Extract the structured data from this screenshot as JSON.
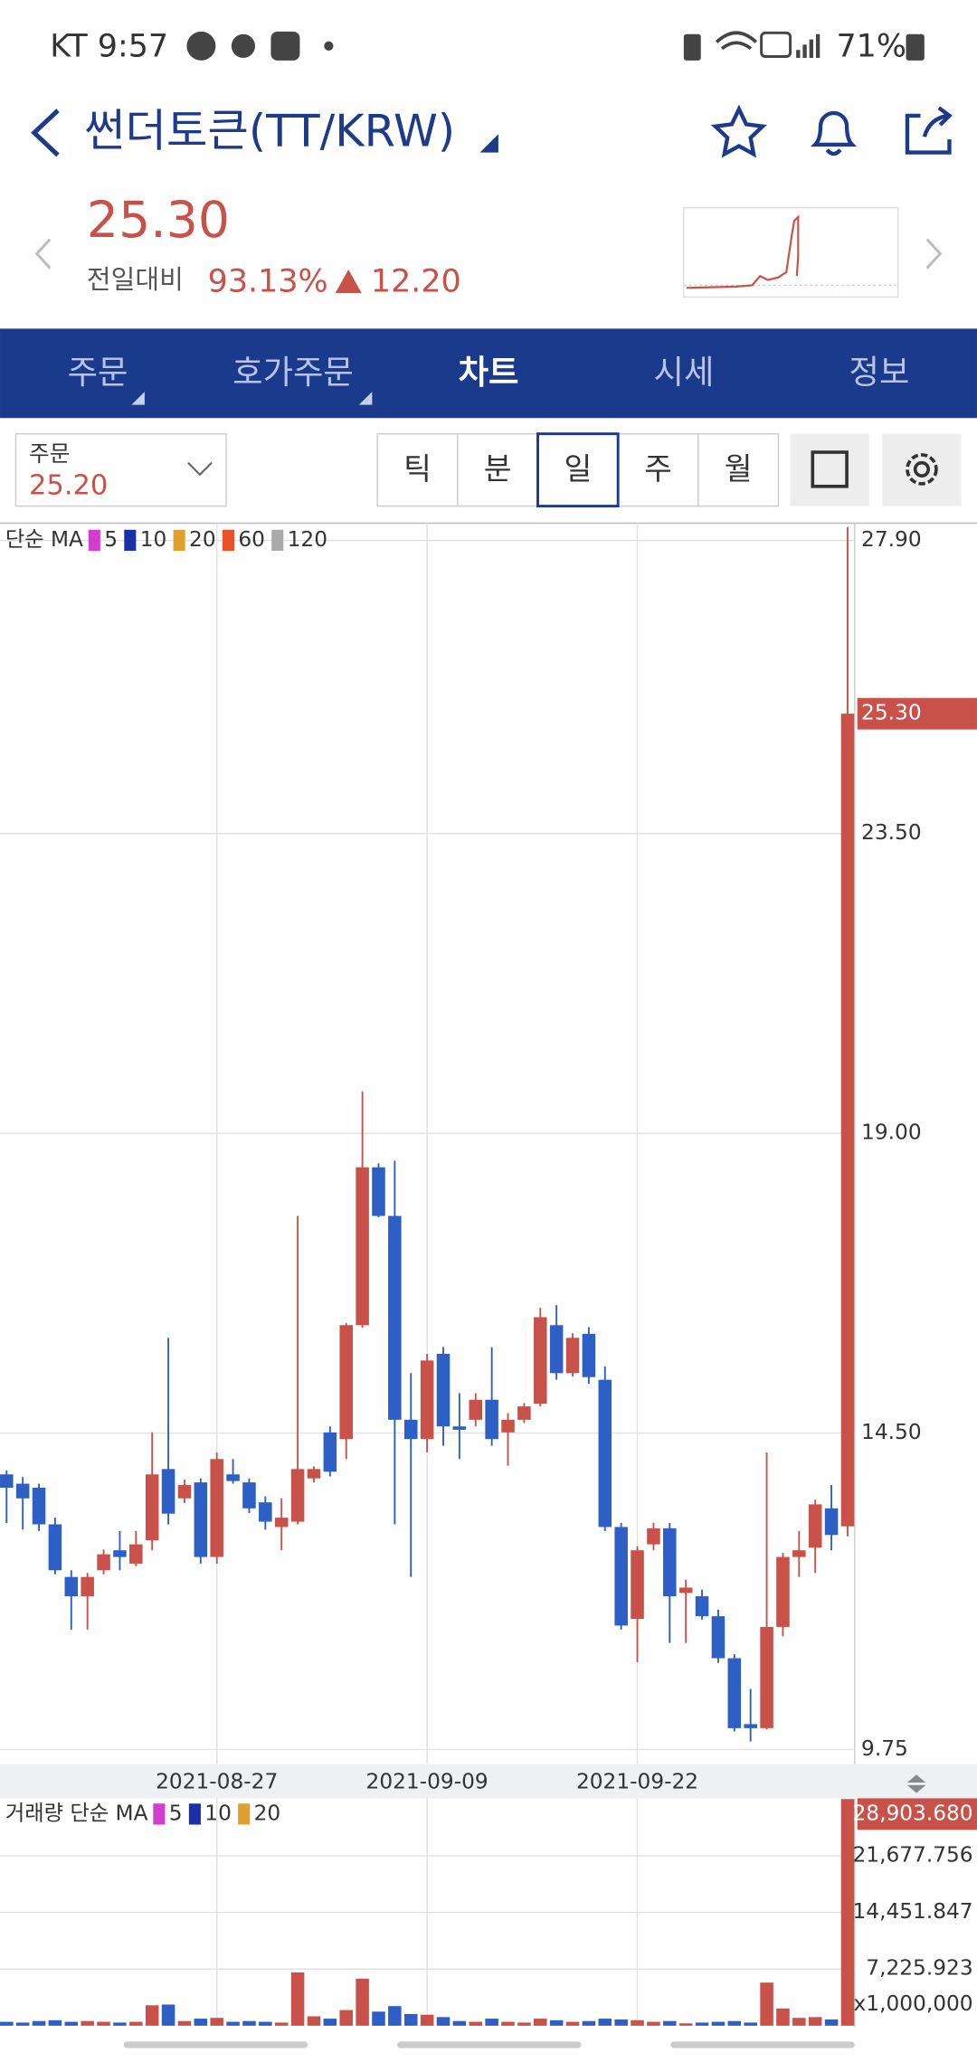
{
  "status_bar": {
    "carrier_time": "KT 9:57",
    "battery": "71%"
  },
  "header": {
    "title": "썬더토큰(TT/KRW)"
  },
  "price": {
    "current": "25.30",
    "change_label": "전일대비",
    "change_percent": "93.13%",
    "change": "12.20"
  },
  "tabs": [
    "주문",
    "호가주문",
    "차트",
    "시세",
    "정보"
  ],
  "active_tab": 2,
  "order": {
    "label": "주문",
    "price": "25.20"
  },
  "periods": [
    "틱",
    "분",
    "일",
    "주",
    "월"
  ],
  "active_period": 2,
  "chart_data": [
    {
      "type": "candlestick",
      "legend": {
        "title": "단순 MA",
        "items": [
          {
            "name": "5",
            "color": "#d23ccf"
          },
          {
            "name": "10",
            "color": "#1a2fa8"
          },
          {
            "name": "20",
            "color": "#e0a030"
          },
          {
            "name": "60",
            "color": "#e8532a"
          },
          {
            "name": "120",
            "color": "#aaaaaa"
          }
        ]
      },
      "categories": [
        null,
        null,
        null,
        null,
        null,
        null,
        null,
        null,
        null,
        null,
        null,
        null,
        null,
        "2021-08-27",
        null,
        null,
        null,
        null,
        null,
        null,
        null,
        null,
        null,
        null,
        null,
        null,
        "2021-09-09",
        null,
        null,
        null,
        null,
        null,
        null,
        null,
        null,
        null,
        null,
        null,
        null,
        "2021-09-22",
        null,
        null,
        null,
        null,
        null,
        null,
        null,
        null,
        null,
        null,
        null,
        null,
        null
      ],
      "open": [
        13.88,
        13.74,
        13.68,
        13.13,
        12.34,
        12.05,
        12.44,
        12.74,
        12.54,
        12.89,
        13.96,
        13.52,
        13.76,
        12.64,
        13.88,
        13.76,
        13.46,
        13.09,
        13.17,
        13.82,
        14.51,
        14.41,
        16.12,
        18.49,
        17.76,
        14.7,
        14.41,
        15.69,
        14.6,
        14.7,
        15.0,
        14.51,
        14.7,
        14.94,
        16.12,
        15.4,
        15.99,
        15.3,
        13.09,
        11.71,
        12.83,
        13.07,
        12.1,
        12.05,
        11.75,
        11.12,
        10.13,
        10.07,
        11.59,
        12.64,
        12.78,
        13.37,
        13.1
      ],
      "high": [
        13.94,
        13.84,
        13.74,
        13.23,
        12.44,
        12.4,
        12.75,
        13.03,
        13.03,
        14.51,
        15.93,
        13.8,
        13.82,
        14.21,
        14.11,
        13.82,
        13.55,
        13.52,
        17.76,
        14.0,
        14.6,
        16.15,
        19.63,
        18.55,
        18.59,
        15.4,
        15.69,
        15.79,
        15.1,
        15.1,
        15.79,
        14.8,
        14.95,
        16.38,
        16.42,
        16.0,
        16.09,
        15.5,
        13.15,
        12.8,
        13.15,
        13.15,
        12.3,
        12.15,
        11.85,
        11.18,
        10.66,
        14.21,
        12.7,
        13.03,
        13.5,
        13.72,
        28.1
      ],
      "low": [
        13.15,
        13.05,
        13.03,
        12.38,
        11.55,
        11.55,
        12.38,
        12.44,
        12.5,
        12.74,
        13.13,
        13.45,
        12.54,
        12.54,
        13.74,
        13.3,
        13.05,
        12.74,
        13.13,
        13.76,
        13.85,
        14.11,
        16.08,
        17.74,
        13.13,
        12.34,
        14.21,
        14.31,
        14.11,
        14.6,
        14.31,
        14.01,
        14.65,
        14.9,
        15.3,
        15.35,
        15.24,
        13.03,
        11.55,
        11.06,
        12.74,
        11.35,
        11.35,
        11.7,
        11.05,
        10.02,
        9.87,
        10.05,
        11.45,
        12.34,
        12.4,
        12.74,
        12.95
      ],
      "close": [
        13.68,
        13.52,
        13.13,
        12.44,
        12.05,
        12.34,
        12.68,
        12.64,
        12.83,
        13.88,
        13.29,
        13.72,
        12.64,
        14.11,
        13.78,
        13.37,
        13.17,
        13.23,
        13.96,
        13.96,
        13.92,
        16.12,
        18.49,
        17.76,
        14.7,
        14.41,
        15.59,
        14.6,
        14.55,
        15.0,
        14.41,
        14.7,
        14.9,
        16.24,
        15.4,
        15.93,
        15.34,
        13.09,
        11.61,
        12.74,
        13.07,
        12.05,
        12.18,
        11.75,
        11.12,
        10.07,
        10.07,
        11.59,
        12.64,
        12.74,
        13.43,
        12.97,
        25.3
      ],
      "up_color": "#c8524a",
      "down_color": "#2e5fc4",
      "current_label": "25.30",
      "ylim": [
        9.53,
        28.16
      ],
      "yticks": [
        9.75,
        {
          "value": 14.5,
          "label": "14.50"
        },
        {
          "value": 19,
          "label": "19.00"
        },
        {
          "value": 23.5,
          "label": "23.50"
        },
        {
          "value": 27.9,
          "label": "27.90"
        }
      ],
      "grid": true
    },
    {
      "type": "bar",
      "legend": {
        "title": "거래량 단순 MA",
        "items": [
          {
            "name": "5",
            "color": "#d23ccf"
          },
          {
            "name": "10",
            "color": "#1a2fa8"
          },
          {
            "name": "20",
            "color": "#e0a030"
          }
        ]
      },
      "values": [
        500,
        400,
        600,
        700,
        500,
        600,
        500,
        400,
        500,
        2600,
        2700,
        600,
        900,
        1000,
        500,
        600,
        500,
        400,
        6800,
        1200,
        900,
        2000,
        6000,
        1800,
        2500,
        1500,
        1400,
        1100,
        600,
        500,
        900,
        500,
        400,
        900,
        700,
        500,
        600,
        900,
        800,
        700,
        500,
        600,
        300,
        400,
        500,
        600,
        400,
        5500,
        2200,
        1000,
        1100,
        800,
        28903.68
      ],
      "current_label": "28,903.680",
      "unit_label": "x1,000,000",
      "ylim": [
        0,
        29000
      ],
      "yticks": [
        {
          "value": 7225.923,
          "label": "7,225.923"
        },
        {
          "value": 14451.847,
          "label": "14,451.847"
        },
        {
          "value": 21677.756,
          "label": "21,677.756"
        }
      ],
      "grid": true
    }
  ]
}
